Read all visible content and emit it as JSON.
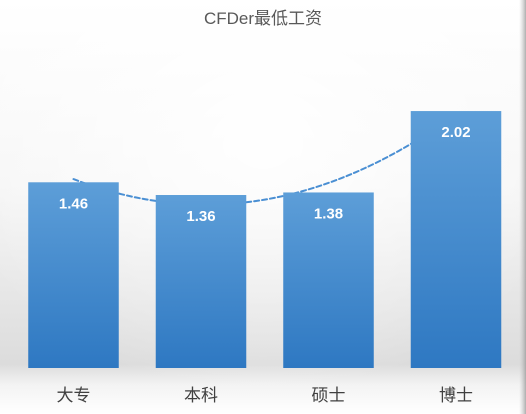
{
  "chart_data": {
    "type": "bar",
    "title": "CFDer最低工资",
    "categories": [
      "大专",
      "本科",
      "硕士",
      "博士"
    ],
    "values": [
      1.46,
      1.36,
      1.38,
      2.02
    ],
    "xlabel": "",
    "ylabel": "",
    "ylim": [
      0,
      2.5
    ],
    "grid": false,
    "legend": "none",
    "data_labels": "inside-end",
    "trendline": {
      "type": "polynomial",
      "order": 2,
      "style": "dashed"
    },
    "colors": {
      "bar_top": "#5d9ed8",
      "bar_bottom": "#2e78c2",
      "trendline": "#4a8fd3",
      "title": "#595959",
      "category_label": "#404040",
      "data_label": "#ffffff"
    }
  }
}
